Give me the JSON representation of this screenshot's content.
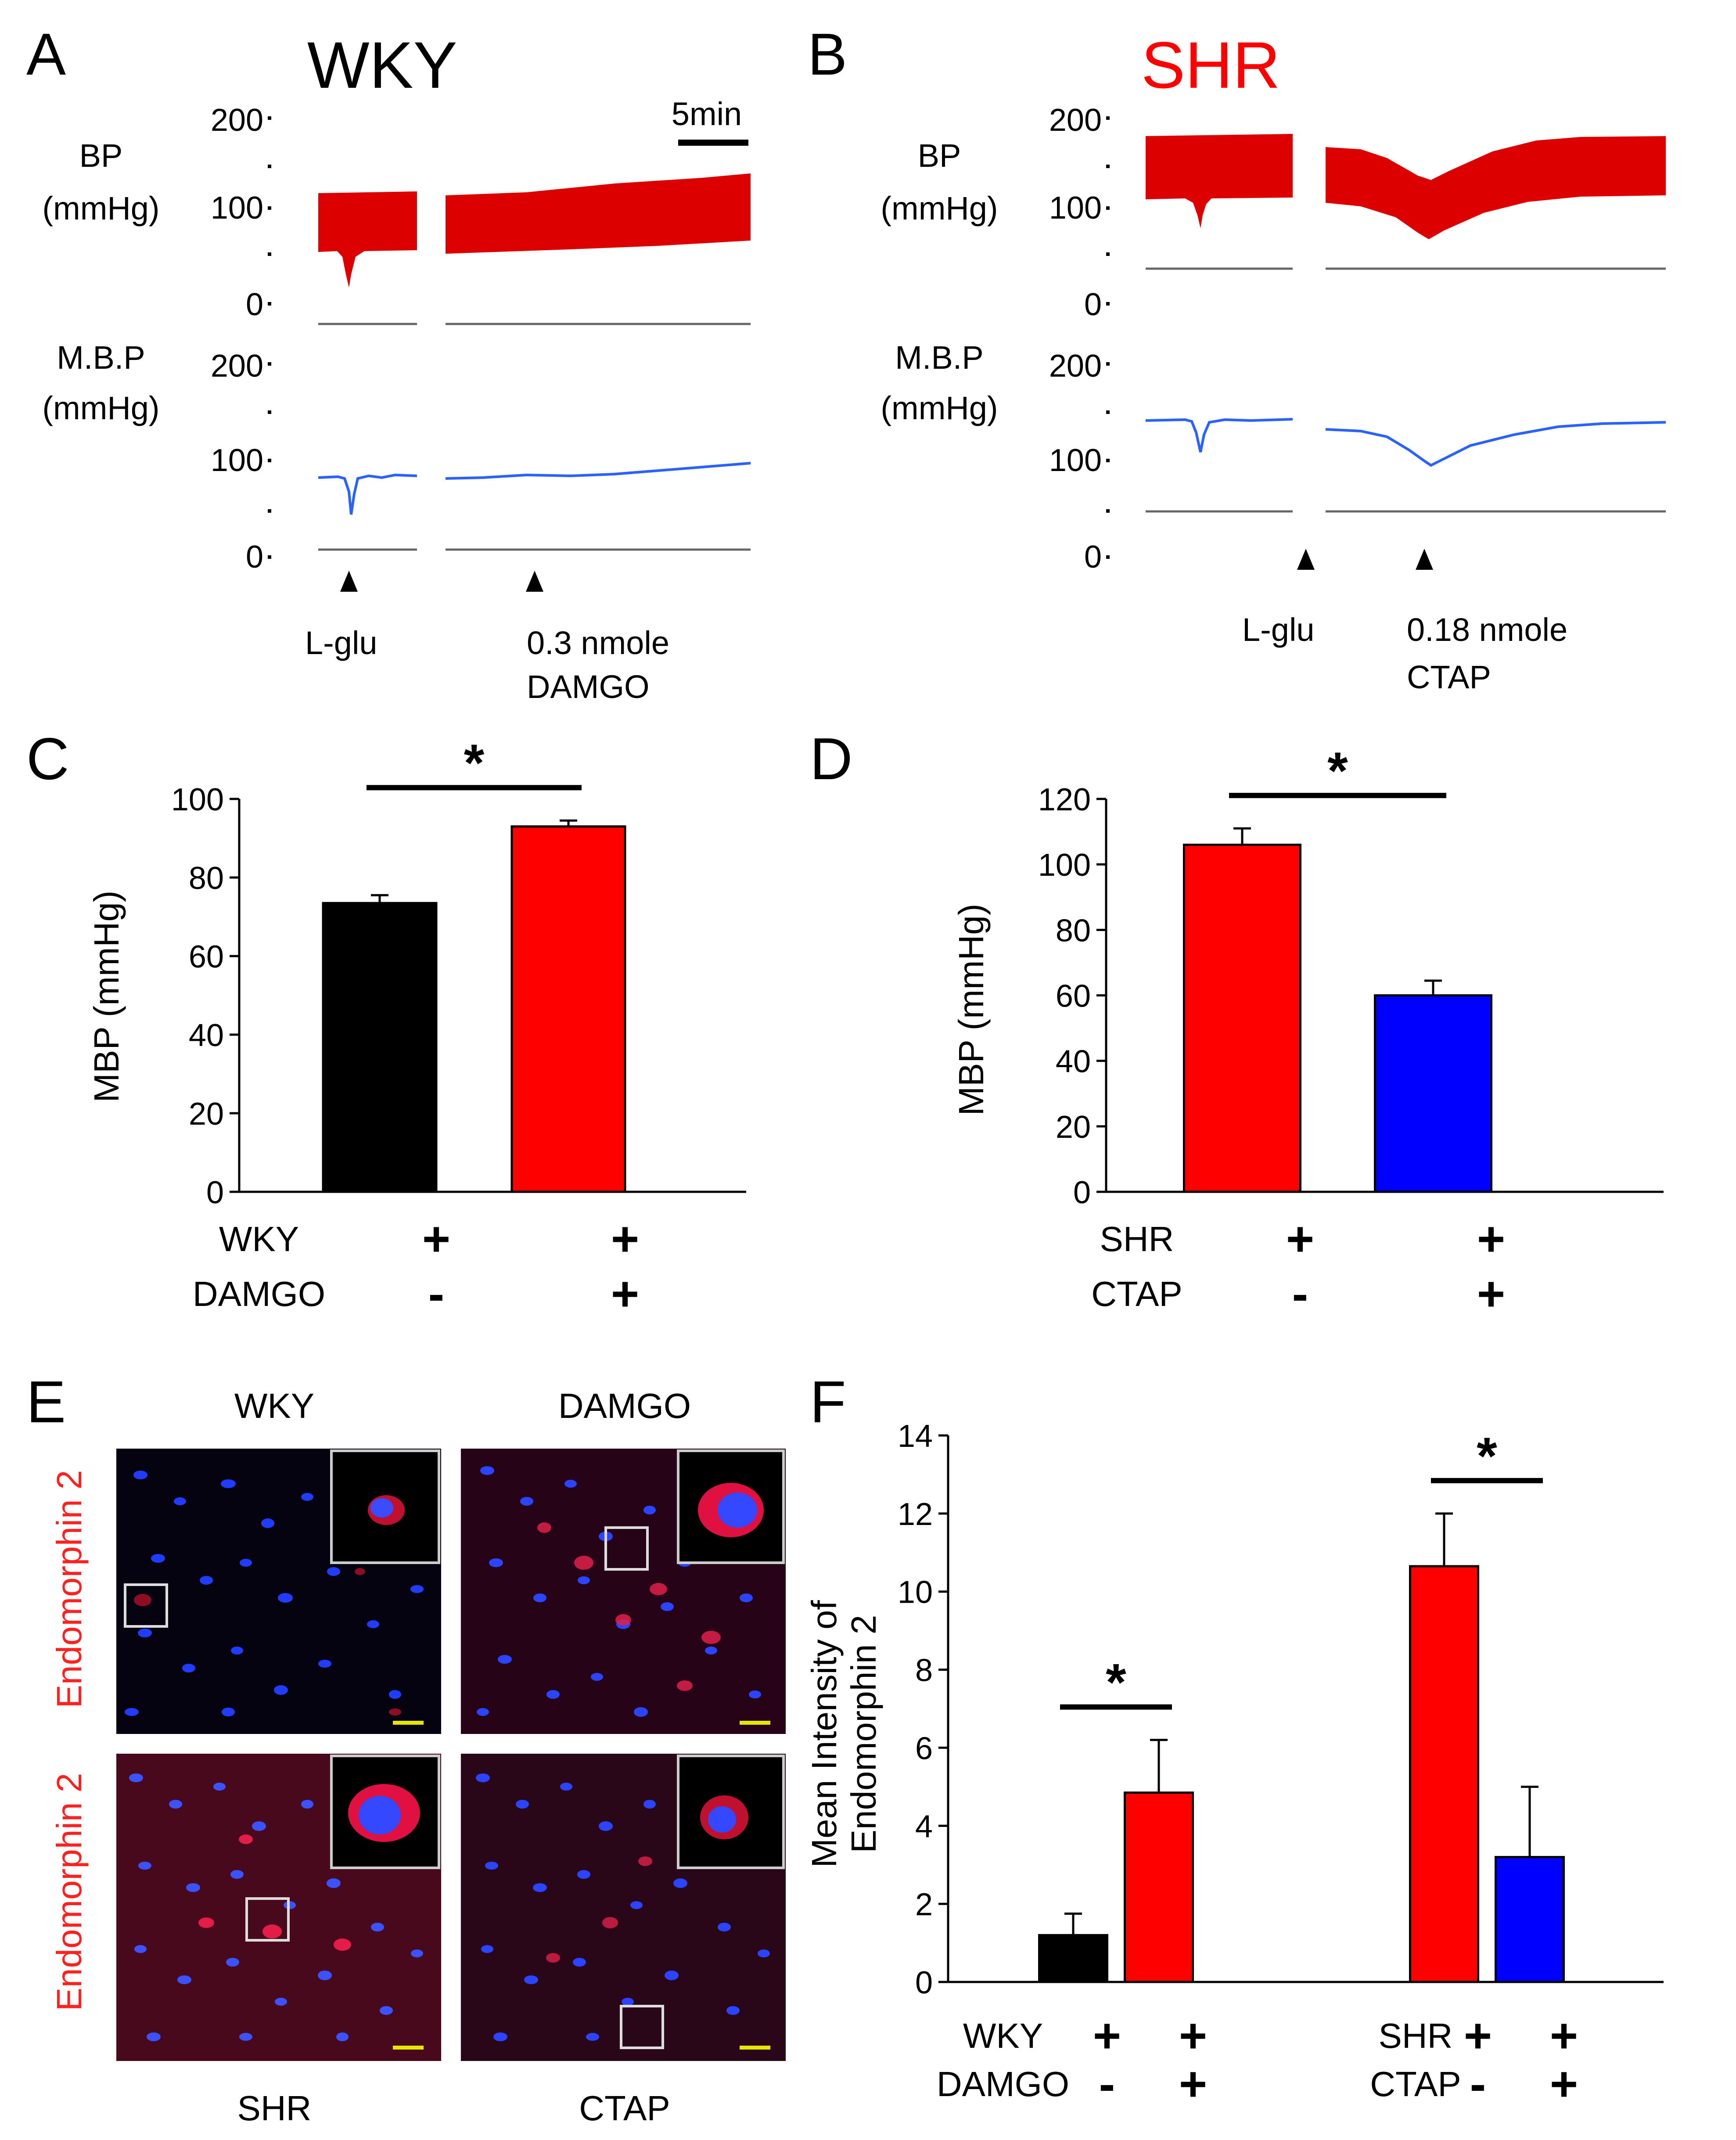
{
  "colors": {
    "black": "#000000",
    "red": "#ff0000",
    "blue": "#0000ff",
    "bp_red": "#dd0000",
    "mbp_blue": "#2a62ff",
    "scale_yellow": "#e6e600"
  },
  "panel_a": {
    "letter": "A",
    "title": "WKY",
    "bp_label_1": "BP",
    "bp_label_2": "(mmHg)",
    "mbp_label_1": "M.B.P",
    "mbp_label_2": "(mmHg)",
    "bp_ticks": [
      "200",
      "100",
      "0"
    ],
    "mbp_ticks": [
      "200",
      "100",
      "0"
    ],
    "scale_label": "5min",
    "arrow1_label": "L-glu",
    "arrow2_label_1": "0.3 nmole",
    "arrow2_label_2": "DAMGO"
  },
  "panel_b": {
    "letter": "B",
    "title": "SHR",
    "bp_label_1": "BP",
    "bp_label_2": "(mmHg)",
    "mbp_label_1": "M.B.P",
    "mbp_label_2": "(mmHg)",
    "bp_ticks": [
      "200",
      "100",
      "0"
    ],
    "mbp_ticks": [
      "200",
      "100",
      "0"
    ],
    "arrow1_label": "L-glu",
    "arrow2_label_1": "0.18 nmole",
    "arrow2_label_2": "CTAP"
  },
  "panel_e": {
    "letter": "E",
    "top_left_label": "WKY",
    "top_right_label": "DAMGO",
    "bottom_left_label": "SHR",
    "bottom_right_label": "CTAP",
    "row_label_top": "Endomorphin 2",
    "row_label_bottom": "Endomorphin 2"
  },
  "chart_data": [
    {
      "panel": "C",
      "type": "bar",
      "categories": [
        "WKY",
        "WKY + DAMGO"
      ],
      "values": [
        73.5,
        93
      ],
      "errors": [
        2,
        1.5
      ],
      "bar_colors": [
        "#000000",
        "#ff0000"
      ],
      "ylabel": "MBP (mmHg)",
      "ylim": [
        0,
        100
      ],
      "yticks": [
        "0",
        "20",
        "40",
        "60",
        "80",
        "100"
      ],
      "row_labels": [
        "WKY",
        "DAMGO"
      ],
      "row_signs": [
        [
          "+",
          "+"
        ],
        [
          "-",
          "+"
        ]
      ],
      "significance": "*"
    },
    {
      "panel": "D",
      "type": "bar",
      "categories": [
        "SHR",
        "SHR + CTAP"
      ],
      "values": [
        106,
        60
      ],
      "errors": [
        5,
        4.5
      ],
      "bar_colors": [
        "#ff0000",
        "#0000ff"
      ],
      "ylabel": "MBP (mmHg)",
      "ylim": [
        0,
        120
      ],
      "yticks": [
        "0",
        "20",
        "40",
        "60",
        "80",
        "100",
        "120"
      ],
      "row_labels": [
        "SHR",
        "CTAP"
      ],
      "row_signs": [
        [
          "+",
          "+"
        ],
        [
          "-",
          "+"
        ]
      ],
      "significance": "*"
    },
    {
      "panel": "F",
      "type": "bar",
      "categories": [
        "WKY",
        "WKY + DAMGO",
        "SHR",
        "SHR + CTAP"
      ],
      "values": [
        1.2,
        4.85,
        10.65,
        3.2
      ],
      "errors": [
        0.55,
        1.35,
        1.35,
        1.8
      ],
      "bar_colors": [
        "#000000",
        "#ff0000",
        "#ff0000",
        "#0000ff"
      ],
      "ylabel_1": "Mean Intensity of",
      "ylabel_2": "Endomorphin 2",
      "ylim": [
        0,
        14
      ],
      "yticks": [
        "0",
        "2",
        "4",
        "6",
        "8",
        "10",
        "12",
        "14"
      ],
      "row_labels_left": [
        "WKY",
        "DAMGO"
      ],
      "row_signs_left": [
        [
          "+",
          "+"
        ],
        [
          "-",
          "+"
        ]
      ],
      "row_labels_right": [
        "SHR",
        "CTAP"
      ],
      "row_signs_right": [
        [
          "+",
          "+"
        ],
        [
          "-",
          "+"
        ]
      ],
      "significance": [
        "*",
        "*"
      ]
    }
  ]
}
